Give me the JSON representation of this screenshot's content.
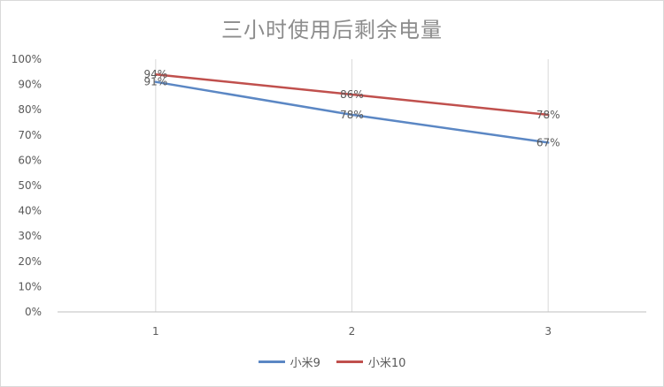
{
  "chart_data": {
    "type": "line",
    "title": "三小时使用后剩余电量",
    "x": [
      "1",
      "2",
      "3"
    ],
    "ylim": [
      0,
      1
    ],
    "yticks": [
      "0%",
      "10%",
      "20%",
      "30%",
      "40%",
      "50%",
      "60%",
      "70%",
      "80%",
      "90%",
      "100%"
    ],
    "grid": {
      "horizontal": false,
      "vertical": true
    },
    "legend": "bottom",
    "series": [
      {
        "name": "小米9",
        "color": "#5b87c4",
        "values": [
          0.91,
          0.78,
          0.67
        ],
        "labels": [
          "91%",
          "78%",
          "67%"
        ]
      },
      {
        "name": "小米10",
        "color": "#c0504d",
        "values": [
          0.94,
          0.86,
          0.78
        ],
        "labels": [
          "94%",
          "86%",
          "78%"
        ]
      }
    ]
  }
}
